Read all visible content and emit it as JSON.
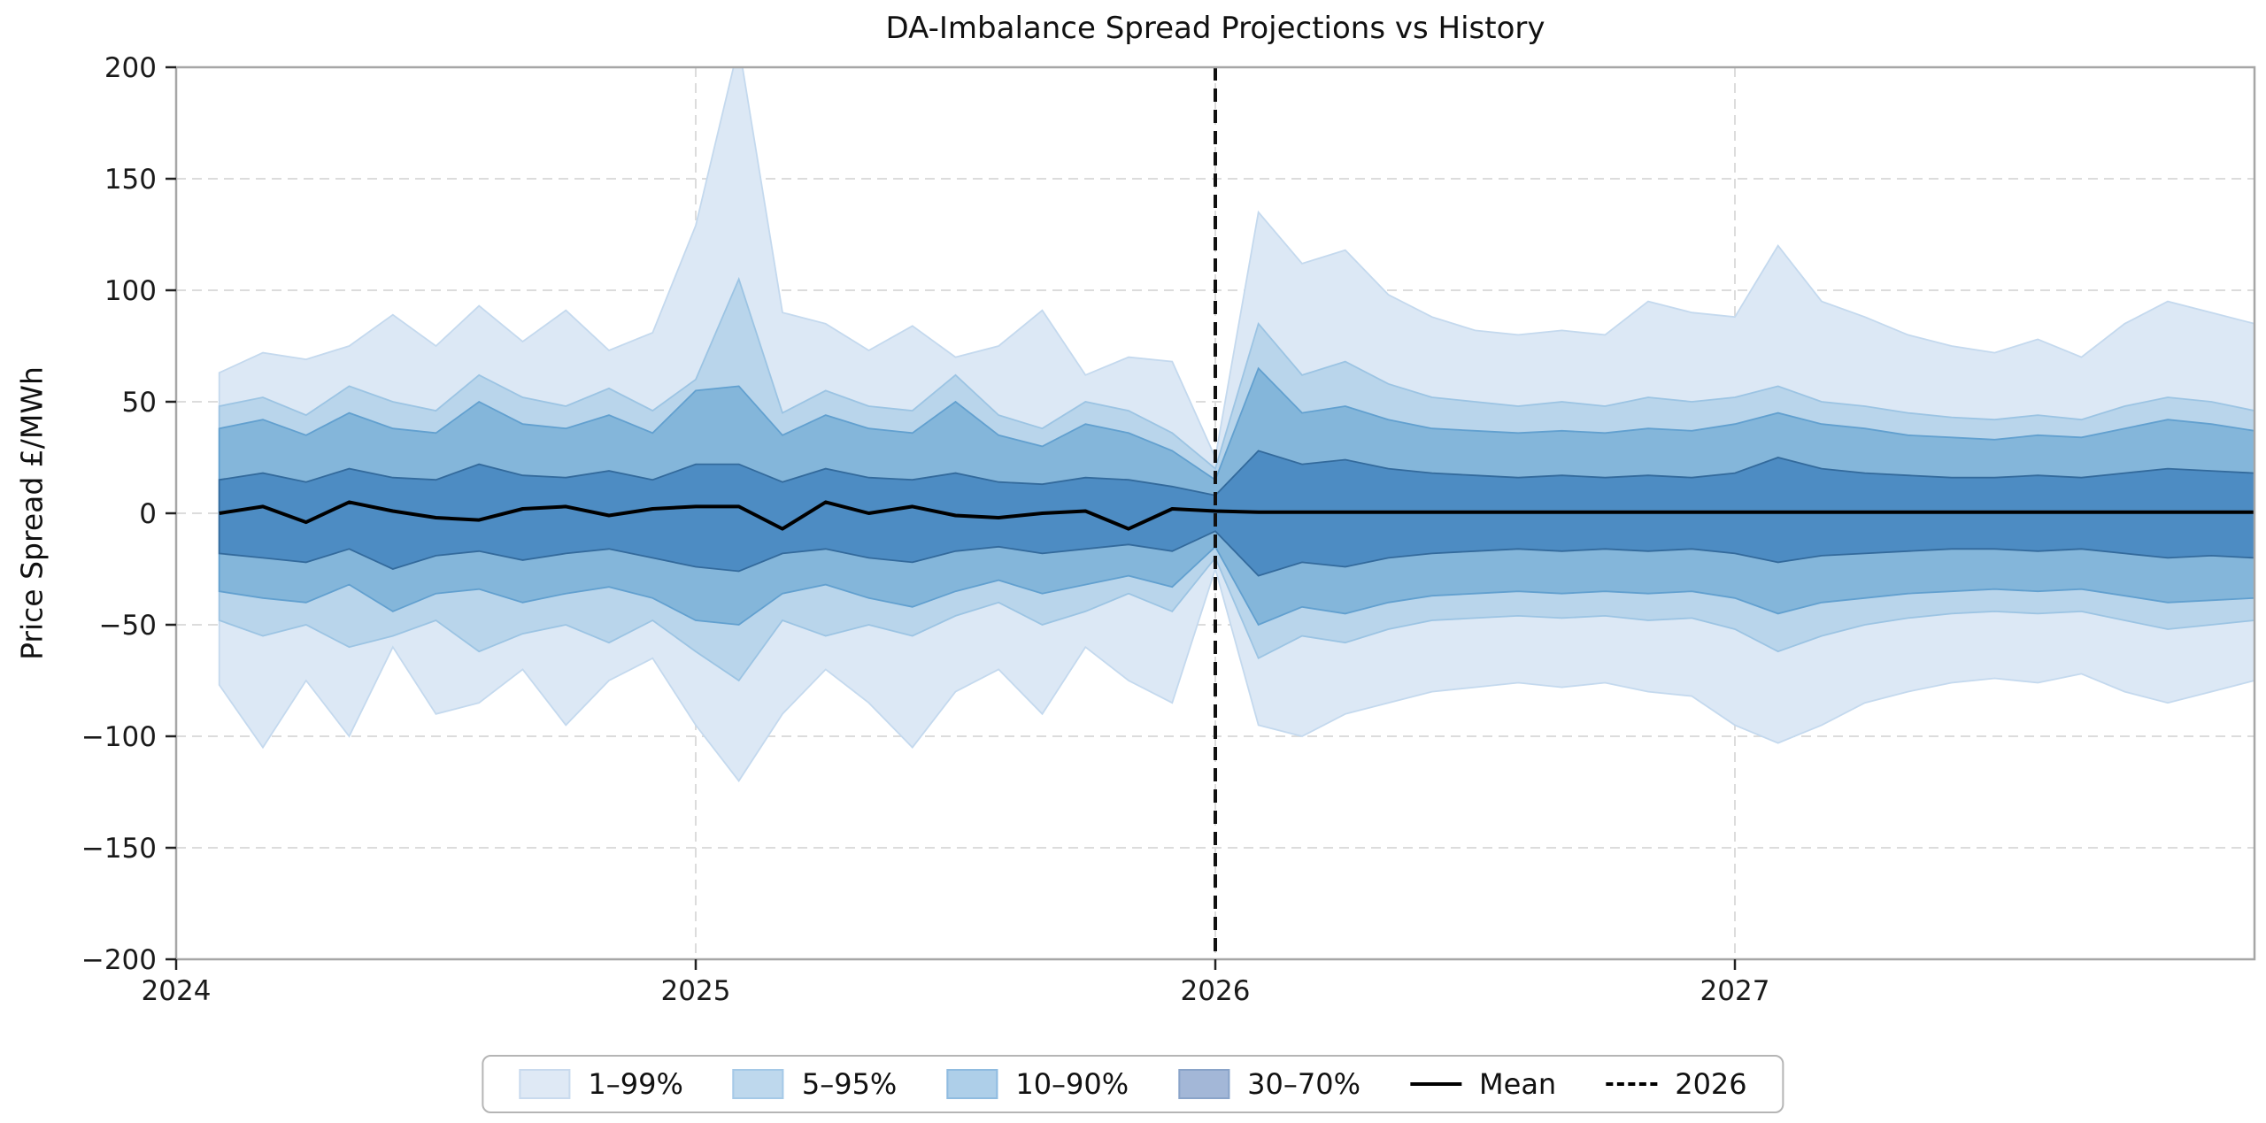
{
  "figure": {
    "title": "DA-Imbalance Spread Projections vs History",
    "y_axis_label": "Price Spread £/MWh"
  },
  "axes": {
    "x_ticks": [
      {
        "value": 2024,
        "label": "2024"
      },
      {
        "value": 2025,
        "label": "2025"
      },
      {
        "value": 2026,
        "label": "2026"
      },
      {
        "value": 2027,
        "label": "2027"
      }
    ],
    "y_ticks": [
      {
        "value": 200,
        "label": "200"
      },
      {
        "value": 150,
        "label": "150"
      },
      {
        "value": 100,
        "label": "100"
      },
      {
        "value": 50,
        "label": "50"
      },
      {
        "value": 0,
        "label": "0"
      },
      {
        "value": -50,
        "label": "−50"
      },
      {
        "value": -100,
        "label": "−100"
      },
      {
        "value": -150,
        "label": "−150"
      },
      {
        "value": -200,
        "label": "−200"
      }
    ]
  },
  "colors": {
    "background": "#ffffff",
    "spine": "#a6a6a6",
    "grid": "#dcdcdc",
    "tick": "#222222",
    "mean_line": "#000000",
    "event_line": "#111111"
  },
  "legend": {
    "items": [
      {
        "label": "1–99%",
        "swatch": "rect",
        "fill": "#dfe9f5",
        "edge": "#c9daee"
      },
      {
        "label": "5–95%",
        "swatch": "rect",
        "fill": "#bed8ed",
        "edge": "#a5c9e7"
      },
      {
        "label": "10–90%",
        "swatch": "rect",
        "fill": "#aecfe9",
        "edge": "#90bce0"
      },
      {
        "label": "30–70%",
        "swatch": "rect",
        "fill": "#a3b7d7",
        "edge": "#8aa4c9"
      },
      {
        "label": "Mean",
        "swatch": "line",
        "color": "#000000"
      },
      {
        "label": "2026",
        "swatch": "dashed-line",
        "color": "#000000"
      }
    ]
  },
  "chart_data": {
    "type": "area",
    "title": "DA-Imbalance Spread Projections vs History",
    "xlabel": "",
    "ylabel": "Price Spread £/MWh",
    "xlim": [
      2024,
      2028
    ],
    "ylim": [
      -200,
      200
    ],
    "x_tick_values": [
      2024,
      2025,
      2026,
      2027
    ],
    "y_tick_step": 50,
    "grid": true,
    "legend_position": "bottom-center",
    "event_line_x": 2026,
    "event_line_label": "2026",
    "x": [
      2024.083,
      2024.167,
      2024.25,
      2024.333,
      2024.417,
      2024.5,
      2024.583,
      2024.667,
      2024.75,
      2024.833,
      2024.917,
      2025.0,
      2025.083,
      2025.167,
      2025.25,
      2025.333,
      2025.417,
      2025.5,
      2025.583,
      2025.667,
      2025.75,
      2025.833,
      2025.917,
      2026.0,
      2026.083,
      2026.167,
      2026.25,
      2026.333,
      2026.417,
      2026.5,
      2026.583,
      2026.667,
      2026.75,
      2026.833,
      2026.917,
      2027.0,
      2027.083,
      2027.167,
      2027.25,
      2027.333,
      2027.417,
      2027.5,
      2027.583,
      2027.667,
      2027.75,
      2027.833,
      2027.917,
      2028.0
    ],
    "bands": [
      {
        "name": "1–99%",
        "fill": "#dce8f5",
        "edge": "#c4d9ee",
        "upper": [
          63,
          72,
          69,
          75,
          89,
          75,
          93,
          77,
          91,
          73,
          81,
          129,
          210,
          90,
          85,
          73,
          84,
          70,
          75,
          91,
          62,
          70,
          68,
          25,
          135,
          112,
          118,
          98,
          88,
          82,
          80,
          82,
          80,
          95,
          90,
          88,
          120,
          95,
          88,
          80,
          75,
          72,
          78,
          70,
          85,
          95,
          90,
          85
        ],
        "lower": [
          -77,
          -105,
          -75,
          -100,
          -60,
          -90,
          -85,
          -70,
          -95,
          -75,
          -65,
          -95,
          -120,
          -90,
          -70,
          -85,
          -105,
          -80,
          -70,
          -90,
          -60,
          -75,
          -85,
          -25,
          -95,
          -100,
          -90,
          -85,
          -80,
          -78,
          -76,
          -78,
          -76,
          -80,
          -82,
          -95,
          -103,
          -95,
          -85,
          -80,
          -76,
          -74,
          -76,
          -72,
          -80,
          -85,
          -80,
          -75
        ]
      },
      {
        "name": "5–95%",
        "fill": "#b9d5eb",
        "edge": "#9cc4e3",
        "upper": [
          48,
          52,
          44,
          57,
          50,
          46,
          62,
          52,
          48,
          56,
          46,
          60,
          105,
          45,
          55,
          48,
          46,
          62,
          44,
          38,
          50,
          46,
          36,
          20,
          85,
          62,
          68,
          58,
          52,
          50,
          48,
          50,
          48,
          52,
          50,
          52,
          57,
          50,
          48,
          45,
          43,
          42,
          44,
          42,
          48,
          52,
          50,
          46
        ],
        "lower": [
          -48,
          -55,
          -50,
          -60,
          -55,
          -48,
          -62,
          -54,
          -50,
          -58,
          -48,
          -62,
          -75,
          -48,
          -55,
          -50,
          -55,
          -46,
          -40,
          -50,
          -44,
          -36,
          -44,
          -20,
          -65,
          -55,
          -58,
          -52,
          -48,
          -47,
          -46,
          -47,
          -46,
          -48,
          -47,
          -52,
          -62,
          -55,
          -50,
          -47,
          -45,
          -44,
          -45,
          -44,
          -48,
          -52,
          -50,
          -48
        ]
      },
      {
        "name": "10–90%",
        "fill": "#84b6da",
        "edge": "#62a0cf",
        "upper": [
          38,
          42,
          35,
          45,
          38,
          36,
          50,
          40,
          38,
          44,
          36,
          55,
          57,
          35,
          44,
          38,
          36,
          50,
          35,
          30,
          40,
          36,
          28,
          15,
          65,
          45,
          48,
          42,
          38,
          37,
          36,
          37,
          36,
          38,
          37,
          40,
          45,
          40,
          38,
          35,
          34,
          33,
          35,
          34,
          38,
          42,
          40,
          37
        ],
        "lower": [
          -35,
          -38,
          -40,
          -32,
          -44,
          -36,
          -34,
          -40,
          -36,
          -33,
          -38,
          -48,
          -50,
          -36,
          -32,
          -38,
          -42,
          -35,
          -30,
          -36,
          -32,
          -28,
          -33,
          -15,
          -50,
          -42,
          -45,
          -40,
          -37,
          -36,
          -35,
          -36,
          -35,
          -36,
          -35,
          -38,
          -45,
          -40,
          -38,
          -36,
          -35,
          -34,
          -35,
          -34,
          -37,
          -40,
          -39,
          -38
        ]
      },
      {
        "name": "30–70%",
        "fill": "#4d8cc3",
        "edge": "#336a9c",
        "upper": [
          15,
          18,
          14,
          20,
          16,
          15,
          22,
          17,
          16,
          19,
          15,
          22,
          22,
          14,
          20,
          16,
          15,
          18,
          14,
          13,
          16,
          15,
          12,
          8,
          28,
          22,
          24,
          20,
          18,
          17,
          16,
          17,
          16,
          17,
          16,
          18,
          25,
          20,
          18,
          17,
          16,
          16,
          17,
          16,
          18,
          20,
          19,
          18
        ],
        "lower": [
          -18,
          -20,
          -22,
          -16,
          -25,
          -19,
          -17,
          -21,
          -18,
          -16,
          -20,
          -24,
          -26,
          -18,
          -16,
          -20,
          -22,
          -17,
          -15,
          -18,
          -16,
          -14,
          -17,
          -8,
          -28,
          -22,
          -24,
          -20,
          -18,
          -17,
          -16,
          -17,
          -16,
          -17,
          -16,
          -18,
          -22,
          -19,
          -18,
          -17,
          -16,
          -16,
          -17,
          -16,
          -18,
          -20,
          -19,
          -20
        ]
      }
    ],
    "series": [
      {
        "name": "Mean",
        "color": "#000000",
        "values": [
          0,
          3,
          -4,
          5,
          1,
          -2,
          -3,
          2,
          3,
          -1,
          2,
          3,
          3,
          -7,
          5,
          0,
          3,
          -1,
          -2,
          0,
          1,
          -7,
          2,
          1,
          0.5,
          0.5,
          0.5,
          0.5,
          0.5,
          0.5,
          0.5,
          0.5,
          0.5,
          0.5,
          0.5,
          0.5,
          0.5,
          0.5,
          0.5,
          0.5,
          0.5,
          0.5,
          0.5,
          0.5,
          0.5,
          0.5,
          0.5,
          0.5
        ]
      }
    ]
  }
}
